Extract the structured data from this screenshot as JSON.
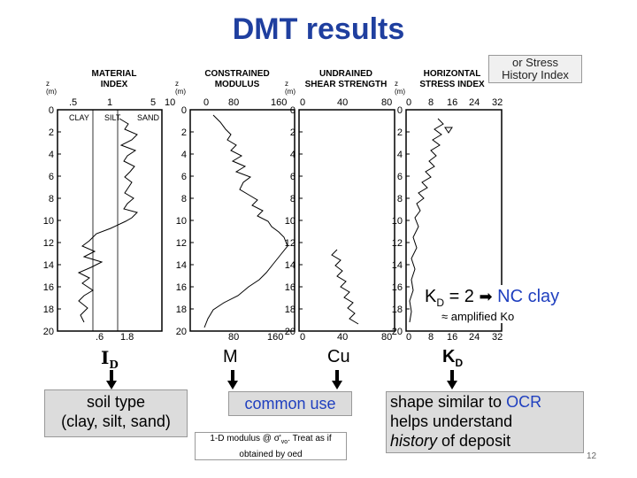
{
  "title": "DMT results",
  "stress_note": "or Stress\nHistory Index",
  "panels": [
    {
      "title": "MATERIAL\nINDEX",
      "z_unit": "z\n(m)",
      "top_ticks": [
        ".5",
        "1",
        "5",
        "10"
      ],
      "bottom_ticks": [
        ".6",
        "1.8"
      ],
      "labels": [
        "CLAY",
        "SILT",
        "SAND"
      ]
    },
    {
      "title": "CONSTRAINED\nMODULUS",
      "z_unit": "z\n(m)",
      "top_ticks": [
        "0",
        "80",
        "160"
      ],
      "bottom_ticks": [
        "80",
        "160"
      ]
    },
    {
      "title": "UNDRAINED\nSHEAR STRENGTH",
      "z_unit": "z\n(m)",
      "top_ticks": [
        "0",
        "40",
        "80"
      ],
      "bottom_ticks": [
        "0",
        "40",
        "80"
      ]
    },
    {
      "title": "HORIZONTAL\nSTRESS INDEX",
      "z_unit": "z\n(m)",
      "top_ticks": [
        "0",
        "8",
        "16",
        "24",
        "32"
      ],
      "bottom_ticks": [
        "0",
        "8",
        "16",
        "24",
        "32"
      ]
    }
  ],
  "depth_ticks": [
    "0",
    "2",
    "4",
    "6",
    "8",
    "10",
    "12",
    "14",
    "16",
    "18",
    "20"
  ],
  "kd_note": {
    "kd": "K",
    "kd_sub": "D",
    "eq": " = 2 ",
    "nc": "NC clay",
    "amp": "≈ amplified Ko"
  },
  "symbols": {
    "id": "I",
    "id_sub": "D",
    "m": "M",
    "cu": "Cu",
    "kd": "K",
    "kd_sub": "D"
  },
  "boxes": {
    "soil": "soil type\n(clay, silt, sand)",
    "common": "common use",
    "oed1": "1-D modulus @ σ'",
    "oed_sub": "vo",
    "oed2": ". Treat as if obtained by oed",
    "ocr_a": "shape similar to ",
    "ocr_b": "OCR",
    "ocr_c": "helps understand",
    "ocr_d": "history",
    "ocr_e": " of deposit"
  },
  "colors": {
    "title": "#1f3f9f",
    "accent": "#1f3fbf"
  },
  "slide_number": "12"
}
